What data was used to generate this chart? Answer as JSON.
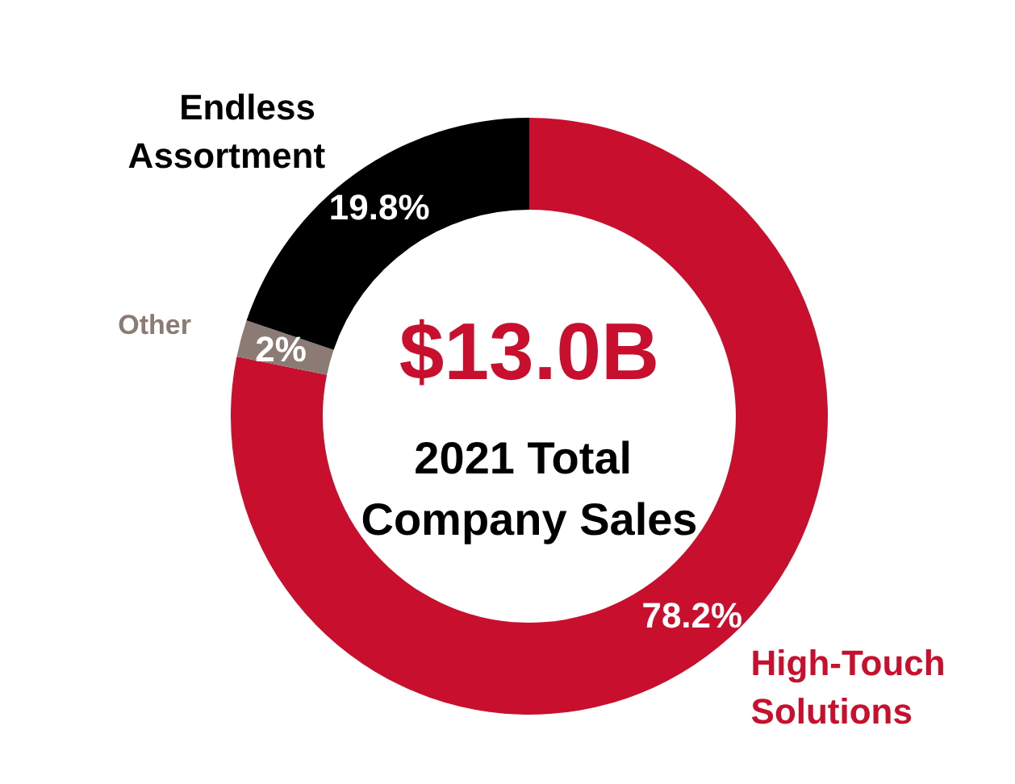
{
  "chart_data": {
    "type": "donut",
    "title": "$13.0B",
    "subtitle": "2021 Total Company Sales",
    "categories": [
      "High-Touch Solutions",
      "Other",
      "Endless Assortment"
    ],
    "values": [
      78.2,
      2,
      19.8
    ],
    "value_labels": [
      "78.2%",
      "2%",
      "19.8%"
    ],
    "colors": [
      "#c8102e",
      "#8c7b75",
      "#000000"
    ],
    "legend": false
  }
}
